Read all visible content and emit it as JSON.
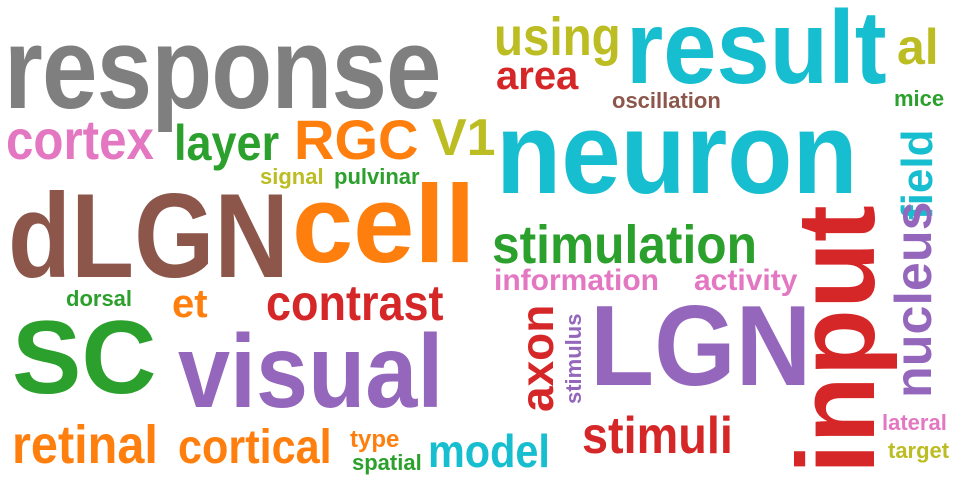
{
  "words": [
    {
      "text": "response",
      "color": "#7f7f7f"
    },
    {
      "text": "result",
      "color": "#17becf"
    },
    {
      "text": "using",
      "color": "#bcbd22"
    },
    {
      "text": "al",
      "color": "#bcbd22"
    },
    {
      "text": "area",
      "color": "#d62728"
    },
    {
      "text": "oscillation",
      "color": "#8c564b"
    },
    {
      "text": "mice",
      "color": "#2ca02c"
    },
    {
      "text": "cortex",
      "color": "#e377c2"
    },
    {
      "text": "layer",
      "color": "#2ca02c"
    },
    {
      "text": "RGC",
      "color": "#ff7f0e"
    },
    {
      "text": "V1",
      "color": "#bcbd22"
    },
    {
      "text": "neuron",
      "color": "#17becf"
    },
    {
      "text": "field",
      "color": "#17becf"
    },
    {
      "text": "signal",
      "color": "#bcbd22"
    },
    {
      "text": "pulvinar",
      "color": "#2ca02c"
    },
    {
      "text": "dLGN",
      "color": "#8c564b"
    },
    {
      "text": "cell",
      "color": "#ff7f0e"
    },
    {
      "text": "stimulation",
      "color": "#2ca02c"
    },
    {
      "text": "input",
      "color": "#d62728"
    },
    {
      "text": "nucleus",
      "color": "#9467bd"
    },
    {
      "text": "information",
      "color": "#e377c2"
    },
    {
      "text": "activity",
      "color": "#e377c2"
    },
    {
      "text": "dorsal",
      "color": "#2ca02c"
    },
    {
      "text": "et",
      "color": "#ff7f0e"
    },
    {
      "text": "contrast",
      "color": "#d62728"
    },
    {
      "text": "SC",
      "color": "#2ca02c"
    },
    {
      "text": "visual",
      "color": "#9467bd"
    },
    {
      "text": "axon",
      "color": "#d62728"
    },
    {
      "text": "stimulus",
      "color": "#9467bd"
    },
    {
      "text": "LGN",
      "color": "#9467bd"
    },
    {
      "text": "lateral",
      "color": "#e377c2"
    },
    {
      "text": "target",
      "color": "#bcbd22"
    },
    {
      "text": "retinal",
      "color": "#ff7f0e"
    },
    {
      "text": "cortical",
      "color": "#ff7f0e"
    },
    {
      "text": "type",
      "color": "#ff7f0e"
    },
    {
      "text": "spatial",
      "color": "#2ca02c"
    },
    {
      "text": "model",
      "color": "#17becf"
    },
    {
      "text": "stimuli",
      "color": "#d62728"
    }
  ]
}
